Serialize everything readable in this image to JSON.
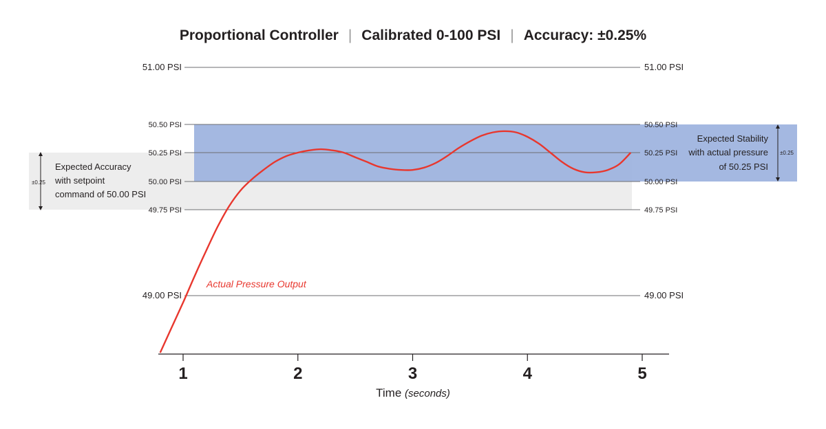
{
  "chart_data": {
    "type": "line",
    "title_parts": [
      "Proportional Controller",
      "Calibrated 0-100 PSI",
      "Accuracy: ±0.25%"
    ],
    "title_separator": "|",
    "xlabel": "Time",
    "xlabel_unit": "(seconds)",
    "x_ticks": [
      "1",
      "2",
      "3",
      "4",
      "5"
    ],
    "xlim": [
      0.8,
      5.2
    ],
    "y_axis_values": [
      49.0,
      49.75,
      50.0,
      50.25,
      50.5,
      51.0
    ],
    "y_axis_labels": [
      "49.00 PSI",
      "49.75 PSI",
      "50.00 PSI",
      "50.25 PSI",
      "50.50 PSI",
      "51.00 PSI"
    ],
    "ylim": [
      48.5,
      51.0
    ],
    "series": [
      {
        "name": "Actual Pressure Output",
        "color": "#e8372e",
        "x": [
          0.8,
          0.9,
          1.0,
          1.1,
          1.2,
          1.3,
          1.4,
          1.5,
          1.6,
          1.7,
          1.8,
          1.9,
          2.0,
          2.1,
          2.2,
          2.3,
          2.4,
          2.5,
          2.6,
          2.7,
          2.8,
          2.9,
          3.0,
          3.1,
          3.2,
          3.3,
          3.4,
          3.5,
          3.6,
          3.7,
          3.8,
          3.9,
          4.0,
          4.1,
          4.2,
          4.3,
          4.4,
          4.5,
          4.6,
          4.7,
          4.8,
          4.9
        ],
        "y": [
          48.5,
          48.72,
          48.94,
          49.17,
          49.39,
          49.6,
          49.78,
          49.92,
          50.02,
          50.1,
          50.17,
          50.22,
          50.25,
          50.27,
          50.28,
          50.27,
          50.25,
          50.21,
          50.17,
          50.13,
          50.11,
          50.1,
          50.1,
          50.12,
          50.16,
          50.22,
          50.29,
          50.35,
          50.4,
          50.43,
          50.44,
          50.43,
          50.39,
          50.33,
          50.25,
          50.17,
          50.11,
          50.08,
          50.08,
          50.1,
          50.15,
          50.25
        ]
      }
    ],
    "bands": {
      "accuracy": {
        "from": 49.75,
        "to": 50.25,
        "color": "#ededed",
        "label_lines": [
          "Expected Accuracy",
          "with setpoint",
          "command of 50.00 PSI"
        ],
        "tolerance_label": "±0.25"
      },
      "stability": {
        "from": 50.0,
        "to": 50.5,
        "color": "#9fb4df",
        "label_lines": [
          "Expected Stability",
          "with actual pressure",
          "of 50.25 PSI"
        ],
        "tolerance_label": "±0.25"
      }
    },
    "grid": true,
    "legend": "none"
  }
}
